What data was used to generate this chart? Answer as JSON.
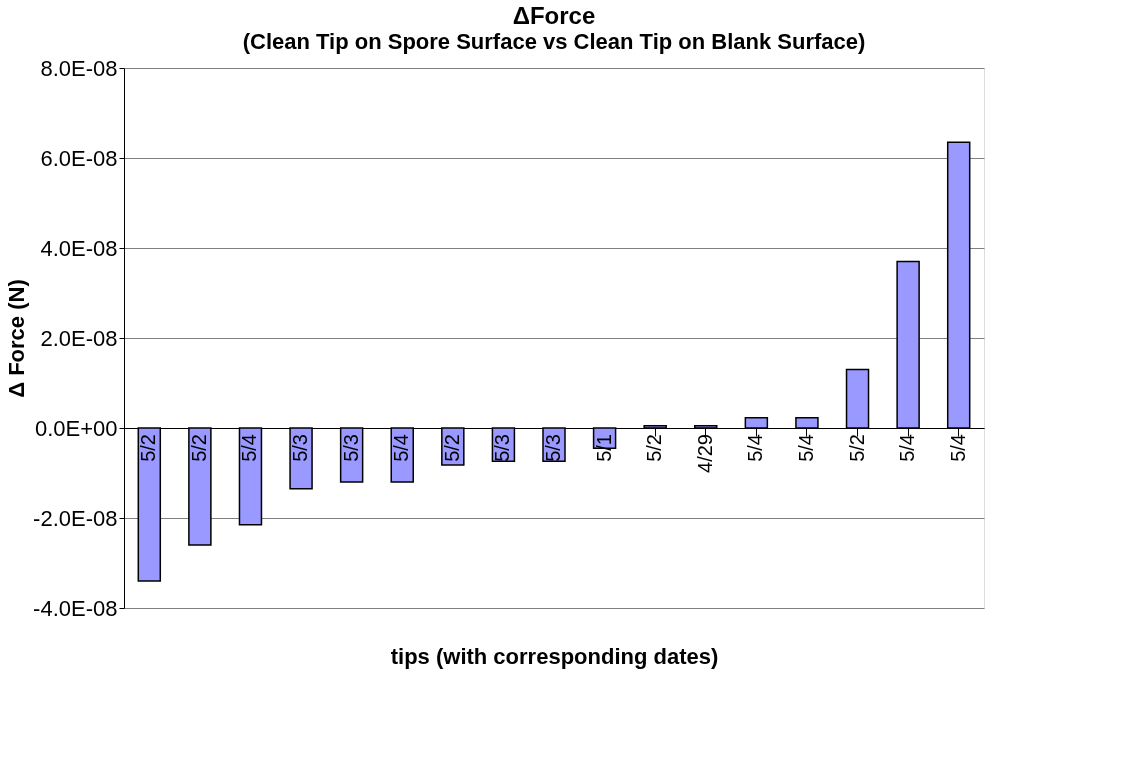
{
  "chart_data": {
    "type": "bar",
    "title": "ΔForce",
    "subtitle": "(Clean Tip on Spore Surface vs Clean Tip on Blank Surface)",
    "xlabel": "tips (with corresponding dates)",
    "ylabel": "Δ Force (N)",
    "categories": [
      "5/2",
      "5/2",
      "5/4",
      "5/3",
      "5/3",
      "5/4",
      "5/2",
      "5/3",
      "5/3",
      "5/1",
      "5/2",
      "4/29",
      "5/4",
      "5/4",
      "5/2",
      "5/4",
      "5/4"
    ],
    "values": [
      -3.4e-08,
      -2.6e-08,
      -2.15e-08,
      -1.35e-08,
      -1.2e-08,
      -1.2e-08,
      -8.2e-09,
      -7.4e-09,
      -7.4e-09,
      -4.5e-09,
      5e-10,
      5e-10,
      2.3e-09,
      2.3e-09,
      1.3e-08,
      3.7e-08,
      6.35e-08
    ],
    "color": "#9999ff",
    "ylim": [
      -4e-08,
      8e-08
    ],
    "yticks": [
      {
        "value": -4e-08,
        "label": "-4.0E-08"
      },
      {
        "value": -2e-08,
        "label": "-2.0E-08"
      },
      {
        "value": 0,
        "label": "0.0E+00"
      },
      {
        "value": 2e-08,
        "label": "2.0E-08"
      },
      {
        "value": 4e-08,
        "label": "4.0E-08"
      },
      {
        "value": 6e-08,
        "label": "6.0E-08"
      },
      {
        "value": 8e-08,
        "label": "8.0E-08"
      }
    ],
    "grid": "y"
  }
}
